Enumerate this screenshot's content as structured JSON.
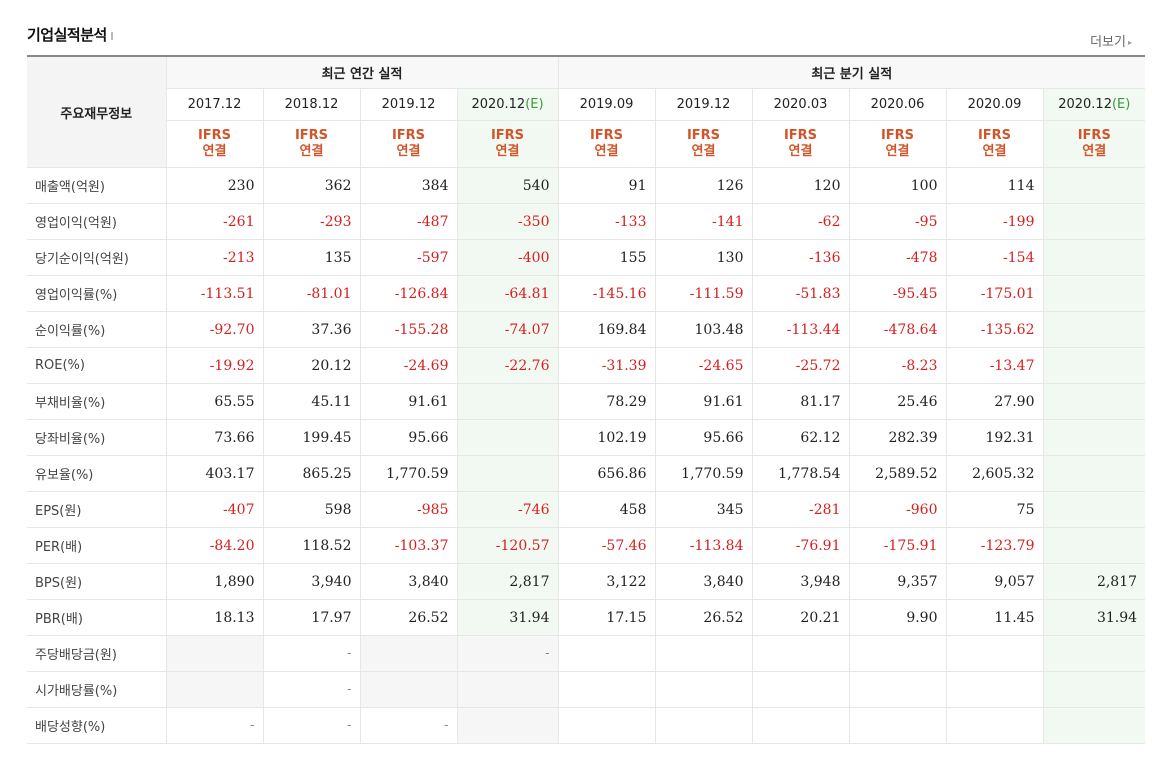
{
  "header": {
    "title": "기업실적분석",
    "more_label": "더보기"
  },
  "table": {
    "label_header": "주요재무정보",
    "annual_group": "최근 연간 실적",
    "quarter_group": "최근 분기 실적",
    "periods": [
      "2017.12",
      "2018.12",
      "2019.12",
      "2020.12",
      "2019.09",
      "2019.12",
      "2020.03",
      "2020.06",
      "2020.09",
      "2020.12"
    ],
    "estimate_suffix": "(E)",
    "ifrs_top": "IFRS",
    "ifrs_bottom": "연결",
    "rows": [
      {
        "label": "매출액(억원)",
        "values": [
          "230",
          "362",
          "384",
          "540",
          "91",
          "126",
          "120",
          "100",
          "114",
          ""
        ]
      },
      {
        "label": "영업이익(억원)",
        "values": [
          "-261",
          "-293",
          "-487",
          "-350",
          "-133",
          "-141",
          "-62",
          "-95",
          "-199",
          ""
        ]
      },
      {
        "label": "당기순이익(억원)",
        "values": [
          "-213",
          "135",
          "-597",
          "-400",
          "155",
          "130",
          "-136",
          "-478",
          "-154",
          ""
        ]
      },
      {
        "label": "영업이익률(%)",
        "values": [
          "-113.51",
          "-81.01",
          "-126.84",
          "-64.81",
          "-145.16",
          "-111.59",
          "-51.83",
          "-95.45",
          "-175.01",
          ""
        ]
      },
      {
        "label": "순이익률(%)",
        "values": [
          "-92.70",
          "37.36",
          "-155.28",
          "-74.07",
          "169.84",
          "103.48",
          "-113.44",
          "-478.64",
          "-135.62",
          ""
        ]
      },
      {
        "label": "ROE(%)",
        "values": [
          "-19.92",
          "20.12",
          "-24.69",
          "-22.76",
          "-31.39",
          "-24.65",
          "-25.72",
          "-8.23",
          "-13.47",
          ""
        ]
      },
      {
        "label": "부채비율(%)",
        "values": [
          "65.55",
          "45.11",
          "91.61",
          "",
          "78.29",
          "91.61",
          "81.17",
          "25.46",
          "27.90",
          ""
        ]
      },
      {
        "label": "당좌비율(%)",
        "values": [
          "73.66",
          "199.45",
          "95.66",
          "",
          "102.19",
          "95.66",
          "62.12",
          "282.39",
          "192.31",
          ""
        ]
      },
      {
        "label": "유보율(%)",
        "values": [
          "403.17",
          "865.25",
          "1,770.59",
          "",
          "656.86",
          "1,770.59",
          "1,778.54",
          "2,589.52",
          "2,605.32",
          ""
        ]
      },
      {
        "label": "EPS(원)",
        "values": [
          "-407",
          "598",
          "-985",
          "-746",
          "458",
          "345",
          "-281",
          "-960",
          "75",
          ""
        ]
      },
      {
        "label": "PER(배)",
        "values": [
          "-84.20",
          "118.52",
          "-103.37",
          "-120.57",
          "-57.46",
          "-113.84",
          "-76.91",
          "-175.91",
          "-123.79",
          ""
        ]
      },
      {
        "label": "BPS(원)",
        "values": [
          "1,890",
          "3,940",
          "3,840",
          "2,817",
          "3,122",
          "3,840",
          "3,948",
          "9,357",
          "9,057",
          "2,817"
        ]
      },
      {
        "label": "PBR(배)",
        "values": [
          "18.13",
          "17.97",
          "26.52",
          "31.94",
          "17.15",
          "26.52",
          "20.21",
          "9.90",
          "11.45",
          "31.94"
        ]
      },
      {
        "label": "주당배당금(원)",
        "values": [
          "",
          "-",
          "",
          "-",
          "",
          "",
          "",
          "",
          "",
          ""
        ]
      },
      {
        "label": "시가배당률(%)",
        "values": [
          "",
          "-",
          "",
          "",
          "",
          "",
          "",
          "",
          "",
          ""
        ]
      },
      {
        "label": "배당성향(%)",
        "values": [
          "-",
          "-",
          "-",
          "",
          "",
          "",
          "",
          "",
          "",
          ""
        ]
      }
    ]
  },
  "colors": {
    "negative": "#d81f1f",
    "ifrs": "#d2552a",
    "estimate_bg": "#f2f8f2",
    "estimate_tag": "#3a9a3a"
  }
}
